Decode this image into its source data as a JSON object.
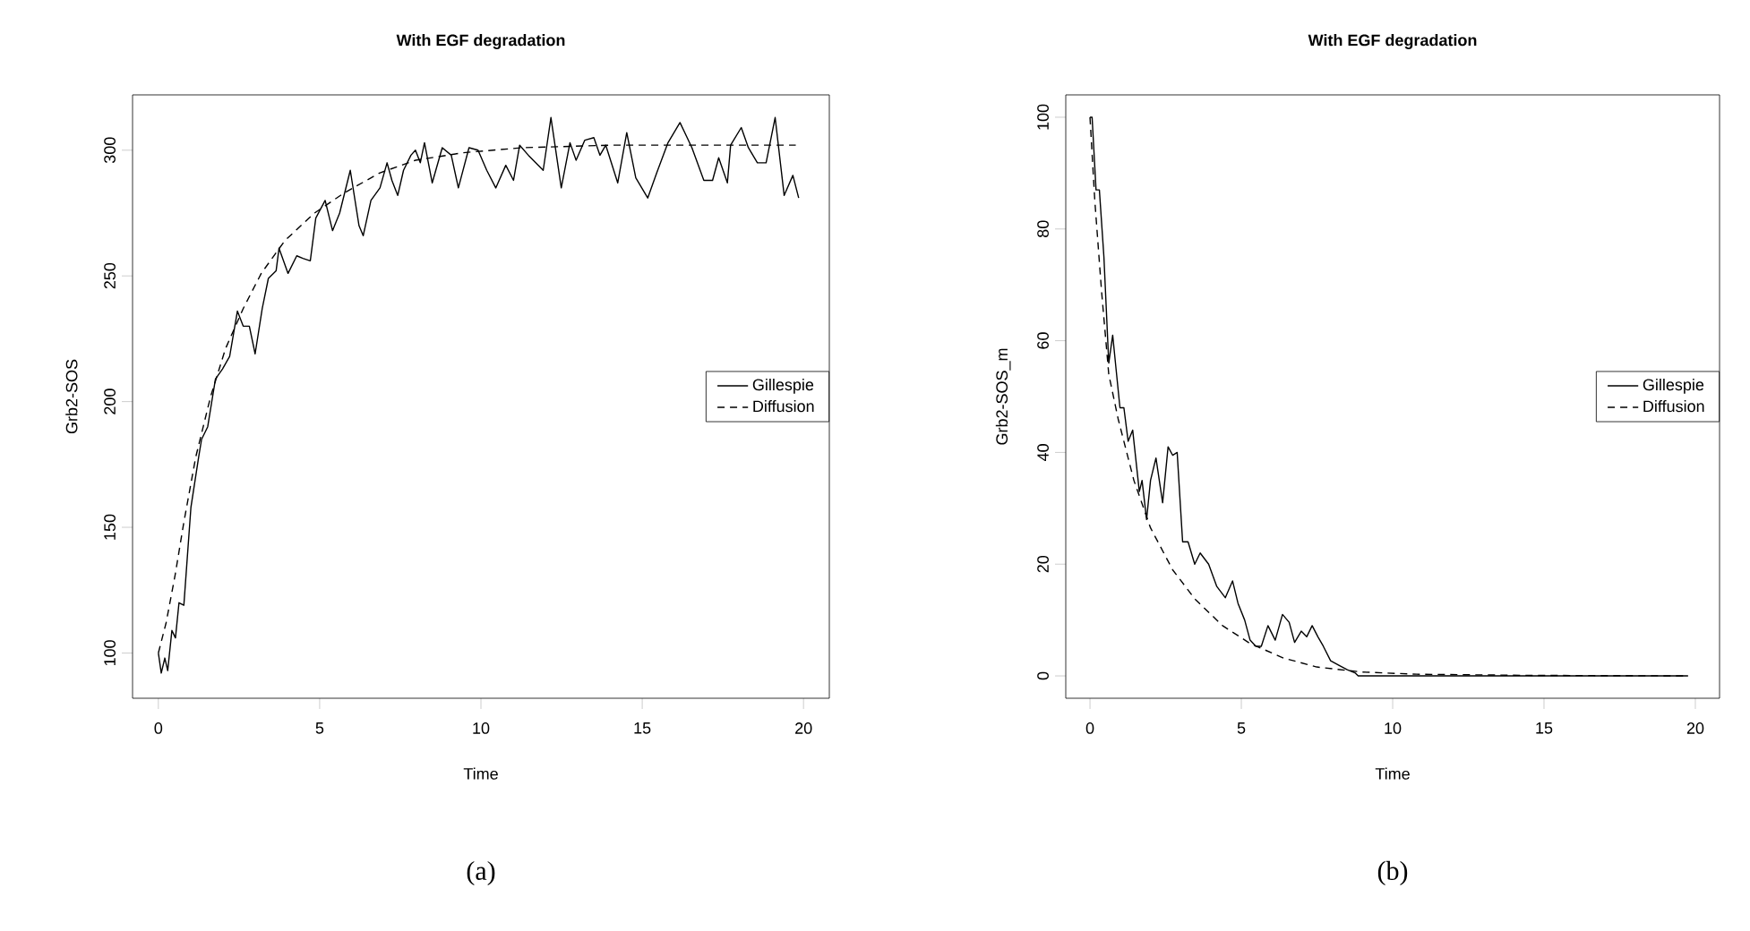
{
  "chart_data": [
    {
      "type": "line",
      "title": "With EGF degradation",
      "xlabel": "Time",
      "ylabel": "Grb2-SOS",
      "annotations": [
        "(a)"
      ],
      "xlim": [
        -0.8,
        20.8
      ],
      "ylim": [
        82,
        322
      ],
      "xticks": [
        0,
        5,
        10,
        15,
        20
      ],
      "yticks": [
        100,
        150,
        200,
        250,
        300
      ],
      "grid": false,
      "legend": "right",
      "series": [
        {
          "name": "Gillespie",
          "color": "#000000",
          "line_style": "solid",
          "x": [
            0,
            0.09,
            0.2,
            0.29,
            0.42,
            0.53,
            0.64,
            0.79,
            1.01,
            1.25,
            1.34,
            1.53,
            1.77,
            1.99,
            2.21,
            2.45,
            2.63,
            2.82,
            3.0,
            3.22,
            3.41,
            3.65,
            3.74,
            4.02,
            4.29,
            4.48,
            4.71,
            4.88,
            5.17,
            5.4,
            5.62,
            5.95,
            6.22,
            6.35,
            6.59,
            6.87,
            7.09,
            7.24,
            7.42,
            7.6,
            7.83,
            7.97,
            8.12,
            8.25,
            8.49,
            8.8,
            9.08,
            9.3,
            9.63,
            9.91,
            10.18,
            10.46,
            10.77,
            11.01,
            11.2,
            11.47,
            11.93,
            12.17,
            12.49,
            12.76,
            12.95,
            13.22,
            13.5,
            13.69,
            13.87,
            14.24,
            14.52,
            14.8,
            15.17,
            15.45,
            15.8,
            16.17,
            16.54,
            16.91,
            17.18,
            17.37,
            17.64,
            17.74,
            18.07,
            18.29,
            18.57,
            18.84,
            19.12,
            19.4,
            19.67,
            19.85
          ],
          "values": [
            100,
            92,
            98,
            93,
            109,
            106,
            120,
            119,
            158,
            178,
            185,
            190,
            209,
            213,
            218,
            236,
            230,
            230,
            219,
            237,
            249,
            252,
            261,
            251,
            258,
            257,
            256,
            273,
            280,
            268,
            275,
            292,
            270,
            266,
            280,
            285,
            295,
            288,
            282,
            292,
            298,
            300,
            295,
            303,
            287,
            301,
            298,
            285,
            301,
            300,
            292,
            285,
            294,
            288,
            302,
            298,
            292,
            313,
            285,
            303,
            296,
            304,
            305,
            298,
            302,
            287,
            307,
            289,
            281,
            291,
            303,
            311,
            301,
            288,
            288,
            297,
            287,
            302,
            309,
            301,
            295,
            295,
            313,
            282,
            290,
            281
          ]
        },
        {
          "name": "Diffusion",
          "color": "#000000",
          "line_style": "dashed",
          "x": [
            0,
            0.24,
            0.52,
            0.79,
            1.16,
            1.62,
            2.08,
            2.63,
            3.19,
            3.92,
            4.84,
            5.76,
            6.87,
            7.97,
            9.45,
            11.29,
            14.05,
            16.81,
            19.76
          ],
          "values": [
            100,
            112,
            131,
            152,
            178,
            202,
            221,
            237,
            251,
            264,
            275,
            283,
            291,
            296,
            299,
            301,
            302,
            302,
            302
          ]
        }
      ]
    },
    {
      "type": "line",
      "title": "With EGF degradation",
      "xlabel": "Time",
      "ylabel": "Grb2-SOS_m",
      "annotations": [
        "(b)"
      ],
      "xlim": [
        -0.8,
        20.8
      ],
      "ylim": [
        -4,
        104
      ],
      "xticks": [
        0,
        5,
        10,
        15,
        20
      ],
      "yticks": [
        0,
        20,
        40,
        60,
        80,
        100
      ],
      "grid": false,
      "legend": "right",
      "series": [
        {
          "name": "Gillespie",
          "color": "#000000",
          "line_style": "solid",
          "x": [
            0,
            0.07,
            0.2,
            0.31,
            0.46,
            0.62,
            0.75,
            0.86,
            0.99,
            1.12,
            1.26,
            1.41,
            1.63,
            1.72,
            1.87,
            2.0,
            2.18,
            2.4,
            2.58,
            2.73,
            2.88,
            3.06,
            3.24,
            3.46,
            3.64,
            3.92,
            4.19,
            4.47,
            4.71,
            4.89,
            5.11,
            5.29,
            5.48,
            5.66,
            5.88,
            6.12,
            6.36,
            6.58,
            6.76,
            6.98,
            7.16,
            7.34,
            7.53,
            7.71,
            7.95,
            8.22,
            8.5,
            8.77,
            8.86,
            19.76
          ],
          "values": [
            100,
            100,
            87,
            87,
            75,
            56,
            61,
            55,
            48,
            48,
            42,
            44,
            33,
            35,
            28,
            35,
            39,
            31,
            41,
            39.5,
            40,
            24,
            24,
            20,
            22,
            20,
            16,
            14,
            17,
            13,
            10,
            6.4,
            5.3,
            5.3,
            9,
            6.4,
            11,
            9.6,
            6,
            8,
            7,
            9,
            7,
            5.3,
            2.7,
            1.9,
            1.1,
            0.5,
            0,
            0
          ]
        },
        {
          "name": "Diffusion",
          "color": "#000000",
          "line_style": "dashed",
          "x": [
            0,
            0.16,
            0.38,
            0.62,
            0.93,
            1.45,
            2.0,
            2.73,
            3.46,
            4.38,
            5.29,
            6.39,
            7.49,
            8.96,
            10.79,
            14.45,
            19.76
          ],
          "values": [
            100,
            85,
            69,
            54,
            46,
            35,
            26.5,
            19,
            13.8,
            9,
            5.8,
            3.2,
            1.6,
            0.7,
            0.3,
            0.1,
            0
          ]
        }
      ]
    }
  ]
}
